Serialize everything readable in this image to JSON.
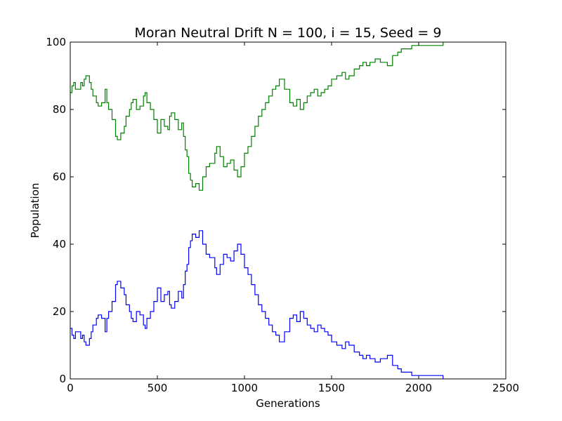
{
  "chart_data": {
    "type": "line",
    "title": "Moran Neutral Drift N = 100, i = 15, Seed = 9",
    "xlabel": "Generations",
    "ylabel": "Population",
    "xlim": [
      0,
      2500
    ],
    "ylim": [
      0,
      100
    ],
    "xticks": [
      "0",
      "500",
      "1000",
      "1500",
      "2000",
      "2500"
    ],
    "yticks": [
      "0",
      "20",
      "40",
      "60",
      "80",
      "100"
    ],
    "grid": false,
    "legend": "none",
    "series": [
      {
        "color": "#008000",
        "x": [
          0,
          10,
          20,
          30,
          40,
          60,
          70,
          80,
          90,
          110,
          120,
          130,
          150,
          160,
          180,
          200,
          210,
          220,
          240,
          260,
          270,
          290,
          310,
          320,
          340,
          350,
          360,
          380,
          400,
          420,
          430,
          440,
          460,
          480,
          500,
          520,
          540,
          560,
          570,
          580,
          600,
          620,
          640,
          650,
          660,
          670,
          680,
          690,
          700,
          720,
          740,
          760,
          780,
          800,
          830,
          840,
          860,
          880,
          900,
          920,
          940,
          960,
          980,
          1000,
          1020,
          1040,
          1060,
          1080,
          1100,
          1120,
          1140,
          1160,
          1180,
          1200,
          1230,
          1260,
          1280,
          1300,
          1320,
          1340,
          1360,
          1380,
          1400,
          1420,
          1440,
          1460,
          1480,
          1500,
          1530,
          1560,
          1580,
          1600,
          1630,
          1660,
          1680,
          1700,
          1720,
          1750,
          1780,
          1800,
          1820,
          1850,
          1880,
          1900,
          1930,
          1960,
          1980,
          2000,
          2050,
          2100,
          2140
        ],
        "y": [
          85,
          87,
          88,
          86,
          86,
          88,
          87,
          89,
          90,
          88,
          86,
          84,
          82,
          81,
          82,
          86,
          82,
          80,
          77,
          72,
          71,
          73,
          75,
          78,
          80,
          82,
          83,
          80,
          81,
          84,
          85,
          82,
          80,
          77,
          73,
          77,
          75,
          74,
          78,
          79,
          77,
          74,
          76,
          72,
          68,
          66,
          61,
          59,
          57,
          58,
          56,
          60,
          63,
          64,
          67,
          69,
          66,
          63,
          64,
          65,
          62,
          60,
          63,
          67,
          69,
          72,
          75,
          78,
          80,
          82,
          84,
          86,
          87,
          89,
          86,
          82,
          81,
          83,
          80,
          82,
          84,
          85,
          86,
          84,
          85,
          86,
          87,
          89,
          90,
          91,
          89,
          90,
          92,
          93,
          94,
          93,
          94,
          95,
          94,
          94,
          93,
          96,
          97,
          98,
          98,
          99,
          99,
          99,
          99,
          99,
          100
        ]
      },
      {
        "color": "#0000ff",
        "x": [
          0,
          10,
          20,
          30,
          40,
          60,
          70,
          80,
          90,
          110,
          120,
          130,
          150,
          160,
          180,
          200,
          210,
          220,
          240,
          260,
          270,
          290,
          310,
          320,
          340,
          350,
          360,
          380,
          400,
          420,
          430,
          440,
          460,
          480,
          500,
          520,
          540,
          560,
          570,
          580,
          600,
          620,
          640,
          650,
          660,
          670,
          680,
          690,
          700,
          720,
          740,
          760,
          780,
          800,
          830,
          840,
          860,
          880,
          900,
          920,
          940,
          960,
          980,
          1000,
          1020,
          1040,
          1060,
          1080,
          1100,
          1120,
          1140,
          1160,
          1180,
          1200,
          1230,
          1260,
          1280,
          1300,
          1320,
          1340,
          1360,
          1380,
          1400,
          1420,
          1440,
          1460,
          1480,
          1500,
          1530,
          1560,
          1580,
          1600,
          1630,
          1660,
          1680,
          1700,
          1720,
          1750,
          1780,
          1800,
          1820,
          1850,
          1880,
          1900,
          1930,
          1960,
          1980,
          2000,
          2050,
          2100,
          2140
        ],
        "y": [
          15,
          13,
          12,
          14,
          14,
          12,
          13,
          11,
          10,
          12,
          14,
          16,
          18,
          19,
          18,
          14,
          18,
          20,
          23,
          28,
          29,
          27,
          25,
          22,
          20,
          18,
          17,
          20,
          19,
          16,
          15,
          18,
          20,
          23,
          27,
          23,
          25,
          26,
          22,
          21,
          23,
          26,
          24,
          28,
          32,
          34,
          39,
          41,
          43,
          42,
          44,
          40,
          37,
          36,
          33,
          31,
          34,
          37,
          36,
          35,
          38,
          40,
          37,
          33,
          31,
          28,
          25,
          22,
          20,
          18,
          16,
          14,
          13,
          11,
          14,
          18,
          19,
          17,
          20,
          18,
          16,
          15,
          14,
          16,
          15,
          14,
          13,
          11,
          10,
          9,
          11,
          10,
          8,
          7,
          6,
          7,
          6,
          5,
          6,
          6,
          7,
          4,
          3,
          2,
          2,
          1,
          1,
          1,
          1,
          1,
          0
        ]
      }
    ]
  }
}
